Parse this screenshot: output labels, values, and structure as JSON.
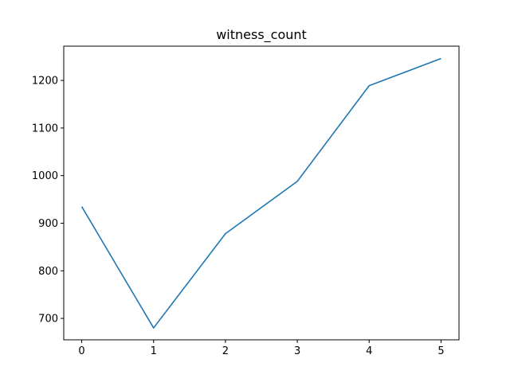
{
  "chart_data": {
    "type": "line",
    "title": "witness_count",
    "xlabel": "",
    "ylabel": "",
    "x": [
      0,
      1,
      2,
      3,
      4,
      5
    ],
    "x_ticks": [
      0,
      1,
      2,
      3,
      4,
      5
    ],
    "y_ticks": [
      700,
      800,
      900,
      1000,
      1100,
      1200
    ],
    "xlim": [
      -0.25,
      5.25
    ],
    "ylim": [
      655,
      1272
    ],
    "grid": false,
    "series": [
      {
        "color": "#1f77b4",
        "values": [
          935,
          680,
          878,
          988,
          1189,
          1246
        ]
      }
    ]
  }
}
